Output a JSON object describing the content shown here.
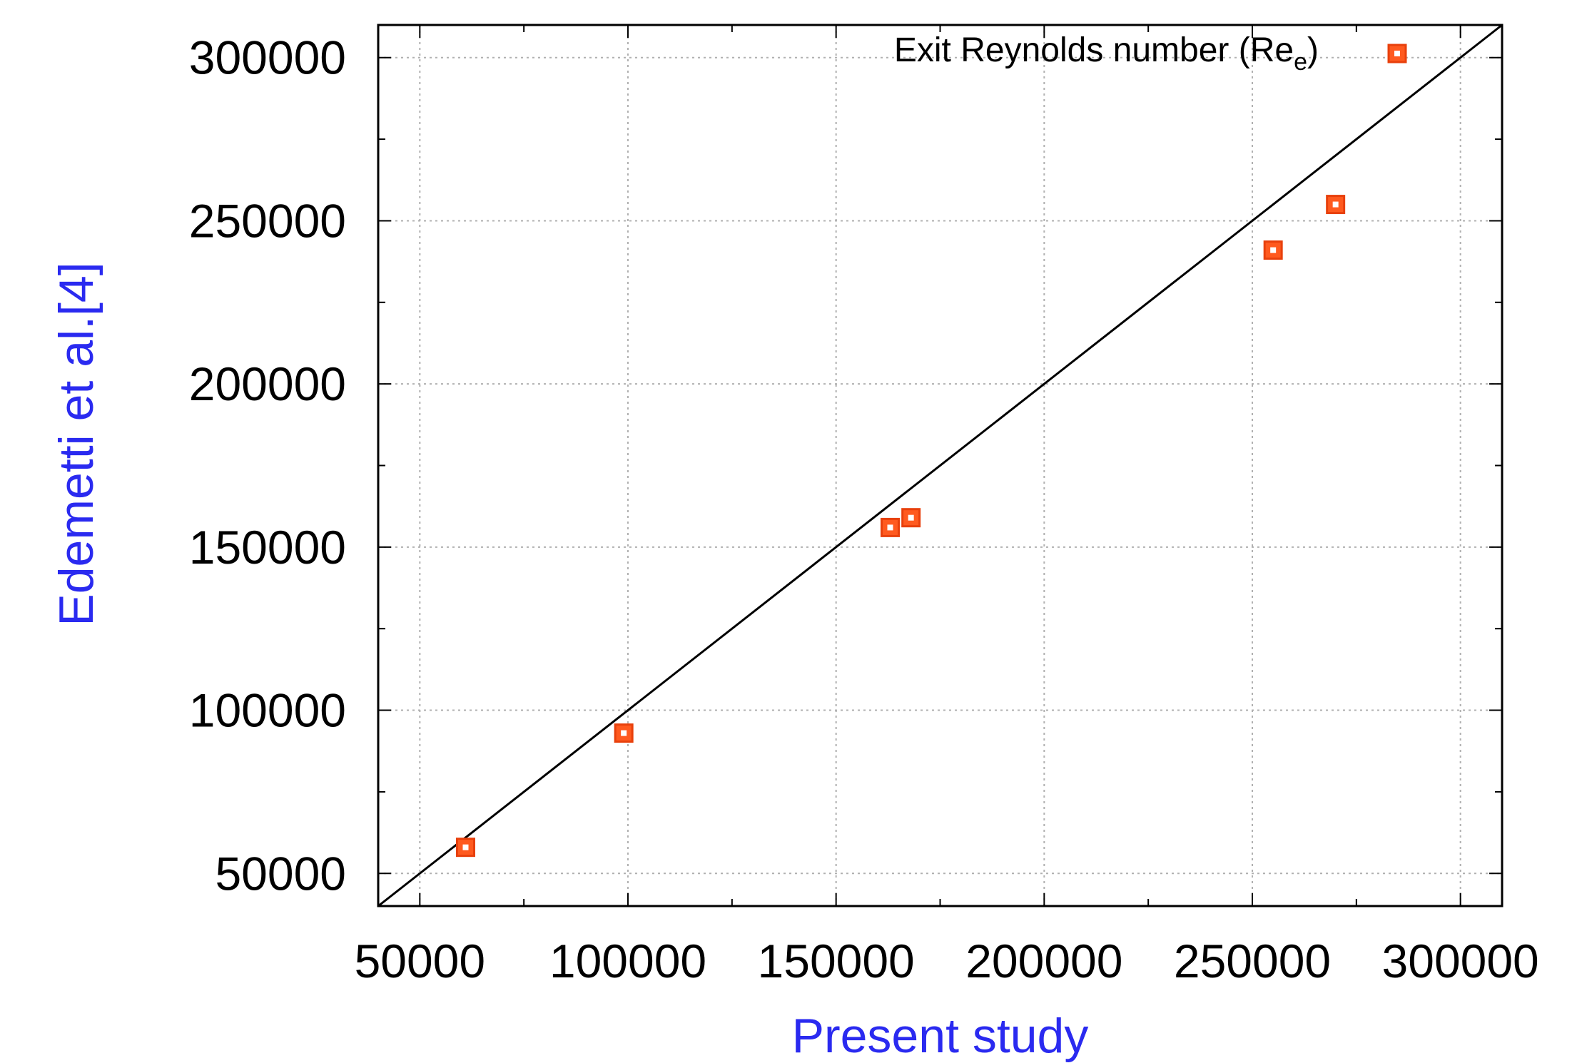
{
  "chart_data": {
    "type": "scatter",
    "xlabel": "Present study",
    "ylabel": "Edemetti et al.[4]",
    "xlim": [
      40000,
      310000
    ],
    "ylim": [
      40000,
      310000
    ],
    "x_ticks": [
      50000,
      100000,
      150000,
      200000,
      250000,
      300000
    ],
    "y_ticks": [
      50000,
      100000,
      150000,
      200000,
      250000,
      300000
    ],
    "x_tick_labels": [
      "50000",
      "100000",
      "150000",
      "200000",
      "250000",
      "300000"
    ],
    "y_tick_labels": [
      "50000",
      "100000",
      "150000",
      "200000",
      "250000",
      "300000"
    ],
    "grid": true,
    "legend_position": "top-right",
    "reference_line": "y = x",
    "series": [
      {
        "name_main": "Exit Reynolds number (Re",
        "name_sub": "e",
        "name_close": ")",
        "marker": "square",
        "x": [
          61000,
          99000,
          163000,
          168000,
          255000,
          270000
        ],
        "y": [
          58000,
          93000,
          156000,
          159000,
          241000,
          255000
        ]
      }
    ]
  },
  "colors": {
    "marker_fill": "#ff5a1f",
    "marker_stroke": "#e8400c",
    "axis_title": "#2a2af0",
    "grid": "#b0b0b0",
    "line": "#000000"
  }
}
